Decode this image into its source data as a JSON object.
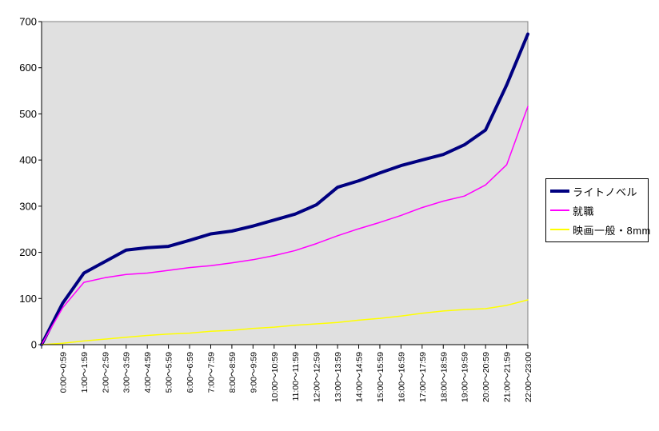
{
  "chart_data": {
    "type": "line",
    "title": "",
    "categories": [
      "",
      "0:00～0:59",
      "1:00～1:59",
      "2:00～2:59",
      "3:00～3:59",
      "4:00～4:59",
      "5:00～5:59",
      "6:00～6:59",
      "7:00～7:59",
      "8:00～8:59",
      "9:00～9:59",
      "10:00～10:59",
      "11:00～11:59",
      "12:00～12:59",
      "13:00～13:59",
      "14:00～14:59",
      "15:00～15:59",
      "16:00～16:59",
      "17:00～17:59",
      "18:00～18:59",
      "19:00～19:59",
      "20:00～20:59",
      "21:00～21:59",
      "22:00～23:00"
    ],
    "series": [
      {
        "name": "ライトノベル",
        "color": "#000080",
        "stroke_width": 4,
        "values": [
          0,
          90,
          155,
          180,
          205,
          210,
          213,
          226,
          240,
          246,
          257,
          270,
          283,
          303,
          341,
          355,
          372,
          388,
          400,
          412,
          433,
          465,
          563,
          673
        ]
      },
      {
        "name": "就職",
        "color": "#FF00FF",
        "stroke_width": 1.5,
        "values": [
          0,
          80,
          135,
          145,
          152,
          155,
          161,
          167,
          171,
          177,
          184,
          193,
          204,
          219,
          236,
          251,
          265,
          280,
          297,
          311,
          322,
          346,
          390,
          516
        ]
      },
      {
        "name": "映画一般・8mm",
        "color": "#FFFF00",
        "stroke_width": 1.5,
        "values": [
          0,
          3,
          8,
          12,
          16,
          20,
          23,
          25,
          29,
          31,
          35,
          38,
          42,
          45,
          48,
          53,
          57,
          62,
          68,
          73,
          76,
          78,
          85,
          97
        ]
      }
    ],
    "y_ticks": [
      0,
      100,
      200,
      300,
      400,
      500,
      600,
      700
    ],
    "ylim": [
      0,
      700
    ],
    "grid": false,
    "plot_bg": "#E0E0E0",
    "plot_border": "#808080",
    "axis_color": "#000000",
    "legend_position": "right",
    "x_labels_rotated": true,
    "note": "Each series starts at 0 on the y-axis at an unlabeled first category position."
  }
}
